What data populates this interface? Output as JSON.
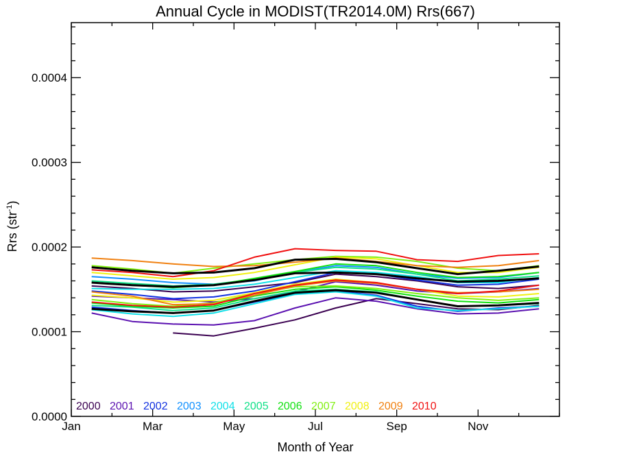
{
  "chart_data": {
    "type": "line",
    "title": "Annual Cycle in MODIST(TR2014.0M) Rrs(667)",
    "xlabel": "Month of Year",
    "ylabel_base": "Rrs (str",
    "ylabel_sup": "-1",
    "ylabel_close": ")",
    "xlim": [
      1,
      13
    ],
    "ylim": [
      0.0,
      0.000465
    ],
    "x_ticks": [
      {
        "value": 1,
        "label": "Jan"
      },
      {
        "value": 3,
        "label": "Mar"
      },
      {
        "value": 5,
        "label": "May"
      },
      {
        "value": 7,
        "label": "Jul"
      },
      {
        "value": 9,
        "label": "Sep"
      },
      {
        "value": 11,
        "label": "Nov"
      }
    ],
    "y_ticks": [
      {
        "value": 0.0,
        "label": "0.0000"
      },
      {
        "value": 0.0001,
        "label": "0.0001"
      },
      {
        "value": 0.0002,
        "label": "0.0002"
      },
      {
        "value": 0.0003,
        "label": "0.0003"
      },
      {
        "value": 0.0004,
        "label": "0.0004"
      }
    ],
    "x": [
      1.5,
      2.5,
      3.5,
      4.5,
      5.5,
      6.5,
      7.5,
      8.5,
      9.5,
      10.5,
      11.5,
      12.5
    ],
    "legend_position": "bottom-left",
    "series": [
      {
        "name": "2000",
        "color": "#3a0050",
        "values": [
          null,
          null,
          9.85e-05,
          9.5e-05,
          0.000104,
          0.000114,
          0.000128,
          0.000139,
          0.000133,
          0.000127,
          0.000126,
          0.000131
        ]
      },
      {
        "name": "2000",
        "color": "#3a0050",
        "values": [
          0.000154,
          0.000151,
          0.000147,
          0.000148,
          0.000153,
          0.000158,
          0.000168,
          0.000165,
          0.00016,
          0.000153,
          0.000151,
          0.000155
        ]
      },
      {
        "name": "2001",
        "color": "#5a10b0",
        "values": [
          0.000122,
          0.000112,
          0.000109,
          0.000108,
          0.000113,
          0.000128,
          0.00014,
          0.000136,
          0.000127,
          0.000121,
          0.000122,
          0.000127
        ]
      },
      {
        "name": "2001",
        "color": "#5a10b0",
        "values": [
          0.000142,
          0.00014,
          0.000138,
          0.000135,
          0.000139,
          0.000147,
          0.000159,
          0.000155,
          0.000148,
          0.000145,
          0.000147,
          0.000151
        ]
      },
      {
        "name": "2002",
        "color": "#1030e0",
        "values": [
          0.000148,
          0.000144,
          0.000139,
          0.000141,
          0.000148,
          0.000159,
          0.00017,
          0.000168,
          0.000161,
          0.000155,
          0.000156,
          0.000162
        ]
      },
      {
        "name": "2002",
        "color": "#1030e0",
        "values": [
          0.000129,
          0.000125,
          0.000122,
          0.000125,
          0.000135,
          0.000145,
          0.000148,
          0.000143,
          0.00013,
          0.000124,
          0.000128,
          0.00013
        ]
      },
      {
        "name": "2003",
        "color": "#1090ff",
        "values": [
          0.000165,
          0.000162,
          0.000158,
          0.000156,
          0.00016,
          0.00017,
          0.000178,
          0.000176,
          0.000168,
          0.000163,
          0.000164,
          0.00017
        ]
      },
      {
        "name": "2004",
        "color": "#10e0e8",
        "values": [
          0.000126,
          0.000121,
          0.000118,
          0.000122,
          0.000133,
          0.000144,
          0.000147,
          0.000142,
          0.000128,
          0.000125,
          0.000127,
          0.00013
        ]
      },
      {
        "name": "2004",
        "color": "#10e0e8",
        "values": [
          0.000151,
          0.00015,
          0.00015,
          0.000151,
          0.000156,
          0.000164,
          0.000172,
          0.00017,
          0.000165,
          0.000158,
          0.000158,
          0.000164
        ]
      },
      {
        "name": "2005",
        "color": "#10e088",
        "values": [
          0.00016,
          0.000157,
          0.000154,
          0.000156,
          0.000162,
          0.00017,
          0.000176,
          0.000174,
          0.000168,
          0.00016,
          0.000162,
          0.000166
        ]
      },
      {
        "name": "2005",
        "color": "#10e088",
        "values": [
          0.000131,
          0.000129,
          0.000125,
          0.000128,
          0.000139,
          0.000148,
          0.00015,
          0.000147,
          0.000138,
          0.00013,
          0.000131,
          0.000133
        ]
      },
      {
        "name": "2006",
        "color": "#10e010",
        "values": [
          0.000158,
          0.000155,
          0.000152,
          0.000155,
          0.000163,
          0.000171,
          0.00018,
          0.000178,
          0.00017,
          0.000164,
          0.000165,
          0.00017
        ]
      },
      {
        "name": "2006",
        "color": "#10e010",
        "values": [
          0.000134,
          0.00013,
          0.000128,
          0.00013,
          0.000142,
          0.00015,
          0.000153,
          0.000149,
          0.000142,
          0.000136,
          0.000134,
          0.000138
        ]
      },
      {
        "name": "2007",
        "color": "#80f010",
        "values": [
          0.000178,
          0.000174,
          0.000169,
          0.000175,
          0.00018,
          0.000185,
          0.000189,
          0.000188,
          0.000183,
          0.000175,
          0.000172,
          0.000178
        ]
      },
      {
        "name": "2007",
        "color": "#80f010",
        "values": [
          0.000138,
          0.000133,
          0.00013,
          0.000134,
          0.000145,
          0.000153,
          0.000154,
          0.000151,
          0.000145,
          0.00014,
          0.000137,
          0.00014
        ]
      },
      {
        "name": "2008",
        "color": "#f0f010",
        "values": [
          0.00017,
          0.000166,
          0.000162,
          0.000164,
          0.00017,
          0.000179,
          0.000188,
          0.000186,
          0.000178,
          0.00017,
          0.00017,
          0.000176
        ]
      },
      {
        "name": "2008",
        "color": "#f0f010",
        "values": [
          0.000143,
          0.00014,
          0.000135,
          0.000137,
          0.000146,
          0.000156,
          0.000162,
          0.000158,
          0.00015,
          0.000142,
          0.000141,
          0.000145
        ]
      },
      {
        "name": "2009",
        "color": "#f08010",
        "values": [
          0.000187,
          0.000184,
          0.00018,
          0.000177,
          0.000178,
          0.000182,
          0.000187,
          0.000183,
          0.000178,
          0.000176,
          0.000178,
          0.000184
        ]
      },
      {
        "name": "2009",
        "color": "#f08010",
        "values": [
          0.000147,
          0.000142,
          0.000132,
          0.000133,
          0.000143,
          0.000154,
          0.00016,
          0.000157,
          0.00015,
          0.000146,
          0.000147,
          0.00015
        ]
      },
      {
        "name": "2010",
        "color": "#f01010",
        "values": [
          0.000173,
          0.00017,
          0.000165,
          0.000172,
          0.000188,
          0.000198,
          0.000196,
          0.000195,
          0.000185,
          0.000183,
          0.00019,
          0.000192
        ]
      },
      {
        "name": "2010",
        "color": "#f01010",
        "values": [
          0.000135,
          0.000131,
          0.000129,
          0.000132,
          0.000145,
          0.000155,
          0.000161,
          0.000158,
          0.00015,
          0.000145,
          0.000148,
          0.000155
        ]
      },
      {
        "name": "",
        "color": "#000000",
        "width": 3,
        "values": [
          0.000176,
          0.000172,
          0.000169,
          0.00017,
          0.000175,
          0.000185,
          0.000186,
          0.000182,
          0.000175,
          0.000168,
          0.000172,
          0.000177
        ]
      },
      {
        "name": "",
        "color": "#000000",
        "width": 3,
        "values": [
          0.000158,
          0.000155,
          0.000153,
          0.000155,
          0.000161,
          0.000169,
          0.00017,
          0.000168,
          0.000163,
          0.000159,
          0.00016,
          0.000163
        ]
      },
      {
        "name": "",
        "color": "#000000",
        "width": 3,
        "values": [
          0.000127,
          0.000124,
          0.000122,
          0.000125,
          0.000136,
          0.000146,
          0.000149,
          0.000146,
          0.000138,
          0.00013,
          0.000131,
          0.000134
        ]
      }
    ],
    "legend": [
      {
        "label": "2000",
        "color": "#3a0050"
      },
      {
        "label": "2001",
        "color": "#5a10b0"
      },
      {
        "label": "2002",
        "color": "#1030e0"
      },
      {
        "label": "2003",
        "color": "#1090ff"
      },
      {
        "label": "2004",
        "color": "#10e0e8"
      },
      {
        "label": "2005",
        "color": "#10e088"
      },
      {
        "label": "2006",
        "color": "#10e010"
      },
      {
        "label": "2007",
        "color": "#80f010"
      },
      {
        "label": "2008",
        "color": "#f0f010"
      },
      {
        "label": "2009",
        "color": "#f08010"
      },
      {
        "label": "2010",
        "color": "#f01010"
      }
    ]
  }
}
